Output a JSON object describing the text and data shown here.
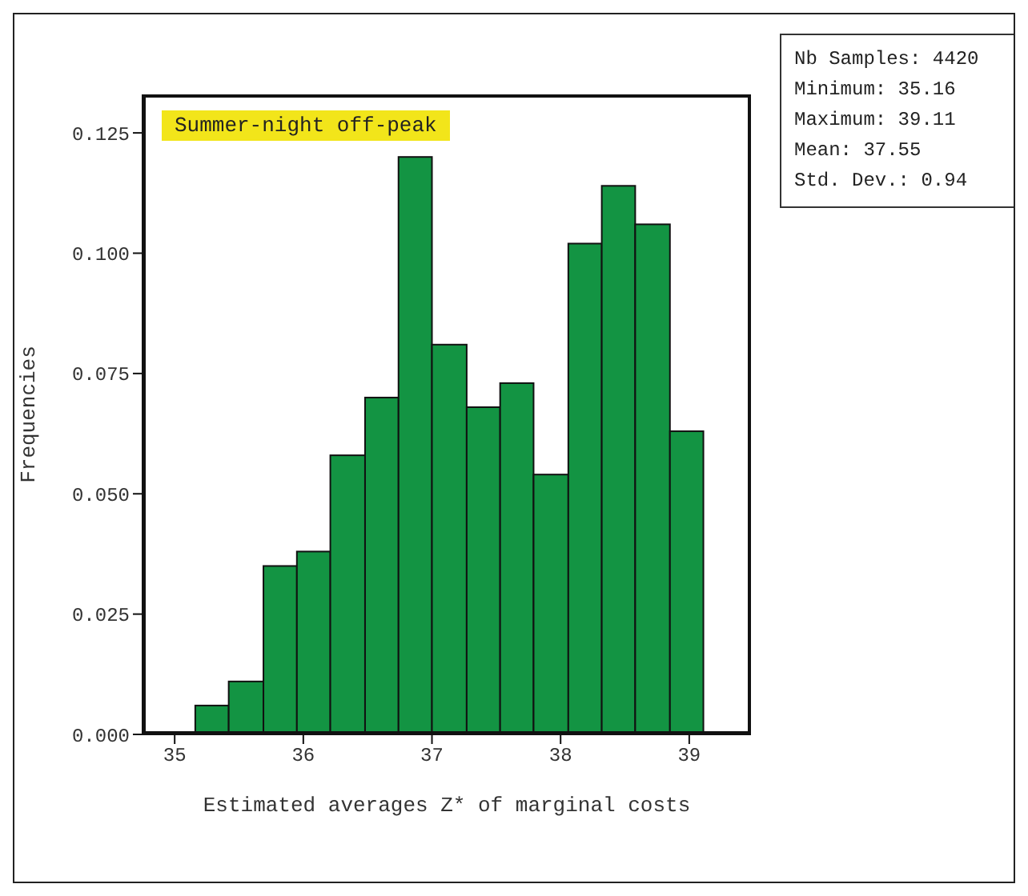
{
  "chart_data": {
    "type": "histogram",
    "title": "Summer-night off-peak",
    "xlabel": "Estimated averages Z* of marginal costs",
    "ylabel": "Frequencies",
    "bins": [
      35.16,
      35.42,
      35.69,
      35.95,
      36.21,
      36.48,
      36.74,
      37.0,
      37.27,
      37.53,
      37.79,
      38.06,
      38.32,
      38.58,
      38.85,
      39.11
    ],
    "values": [
      0.006,
      0.011,
      0.035,
      0.038,
      0.058,
      0.07,
      0.12,
      0.081,
      0.068,
      0.073,
      0.054,
      0.102,
      0.114,
      0.106,
      0.063
    ],
    "color": "#139443",
    "xlim": [
      34.75,
      39.48
    ],
    "xticks": [
      35,
      36,
      37,
      38,
      39
    ],
    "ylim": [
      0,
      0.133
    ],
    "yticks": [
      {
        "value": 0,
        "label": "0.000"
      },
      {
        "value": 0.025,
        "label": "0.025"
      },
      {
        "value": 0.05,
        "label": "0.050"
      },
      {
        "value": 0.075,
        "label": "0.075"
      },
      {
        "value": 0.1,
        "label": "0.100"
      },
      {
        "value": 0.125,
        "label": "0.125"
      }
    ],
    "grid": false,
    "legend": false,
    "annotations": [
      "Nb Samples: 4420",
      "Minimum: 35.16",
      "Maximum: 39.11",
      "Mean: 37.55",
      "Std. Dev.: 0.94"
    ]
  }
}
